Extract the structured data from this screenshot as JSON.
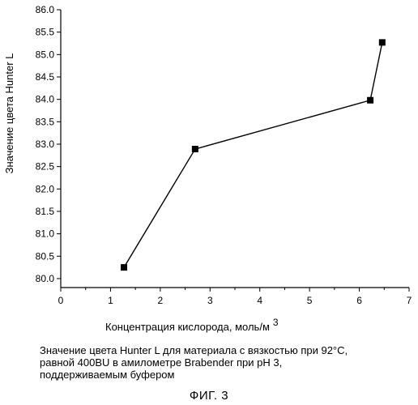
{
  "chart_data": {
    "type": "line",
    "title": "",
    "xlabel": "Концентрация кислорода, моль/м",
    "xlabel_superscript": "3",
    "ylabel": "Значение цвета Hunter L",
    "xlim": [
      0,
      7
    ],
    "ylim": [
      79.8,
      86.0
    ],
    "x_ticks": [
      "0",
      "1",
      "2",
      "3",
      "4",
      "5",
      "6",
      "7"
    ],
    "y_ticks": [
      "80.0",
      "80.5",
      "81.0",
      "81.5",
      "82.0",
      "82.5",
      "83.0",
      "83.5",
      "84.0",
      "84.5",
      "85.0",
      "85.5",
      "86.0"
    ],
    "marker": "square",
    "grid": false,
    "series": [
      {
        "x": [
          1.27,
          2.7,
          6.22,
          6.46
        ],
        "y": [
          80.25,
          82.89,
          83.98,
          85.27
        ]
      }
    ]
  },
  "caption": "Значение цвета Hunter L для материала с вязкостью при 92°C,\nравной 400BU в амилометре Brabender при pH 3,\nподдерживаемым буфером",
  "figure_label": "ФИГ. 3"
}
